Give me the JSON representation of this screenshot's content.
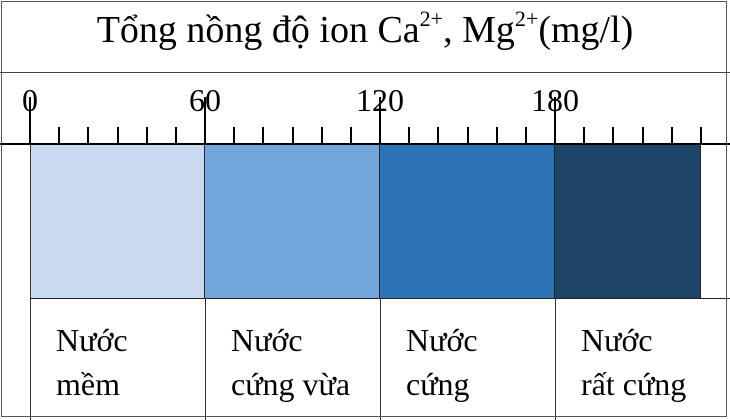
{
  "title": {
    "prefix": "Tổng nồng độ ion Ca",
    "sup1": "2+",
    "middle": ", Mg",
    "sup2": "2+",
    "suffix": "(mg/l)"
  },
  "axis": {
    "min": 0,
    "max": 230,
    "labels": [
      "0",
      "60",
      "120",
      "180"
    ],
    "label_values": [
      0,
      60,
      120,
      180
    ],
    "minor_step": 10
  },
  "zones": [
    {
      "from": 0,
      "to": 60,
      "color": "#c9d9ef",
      "line1": "Nước",
      "line2": "mềm"
    },
    {
      "from": 60,
      "to": 120,
      "color": "#72a6dc",
      "line1": "Nước",
      "line2": "cứng vừa"
    },
    {
      "from": 120,
      "to": 180,
      "color": "#2e73b5",
      "line1": "Nước",
      "line2": "cứng"
    },
    {
      "from": 180,
      "to": 230,
      "color": "#1d4568",
      "line1": "Nước",
      "line2": "rất cứng"
    }
  ]
}
